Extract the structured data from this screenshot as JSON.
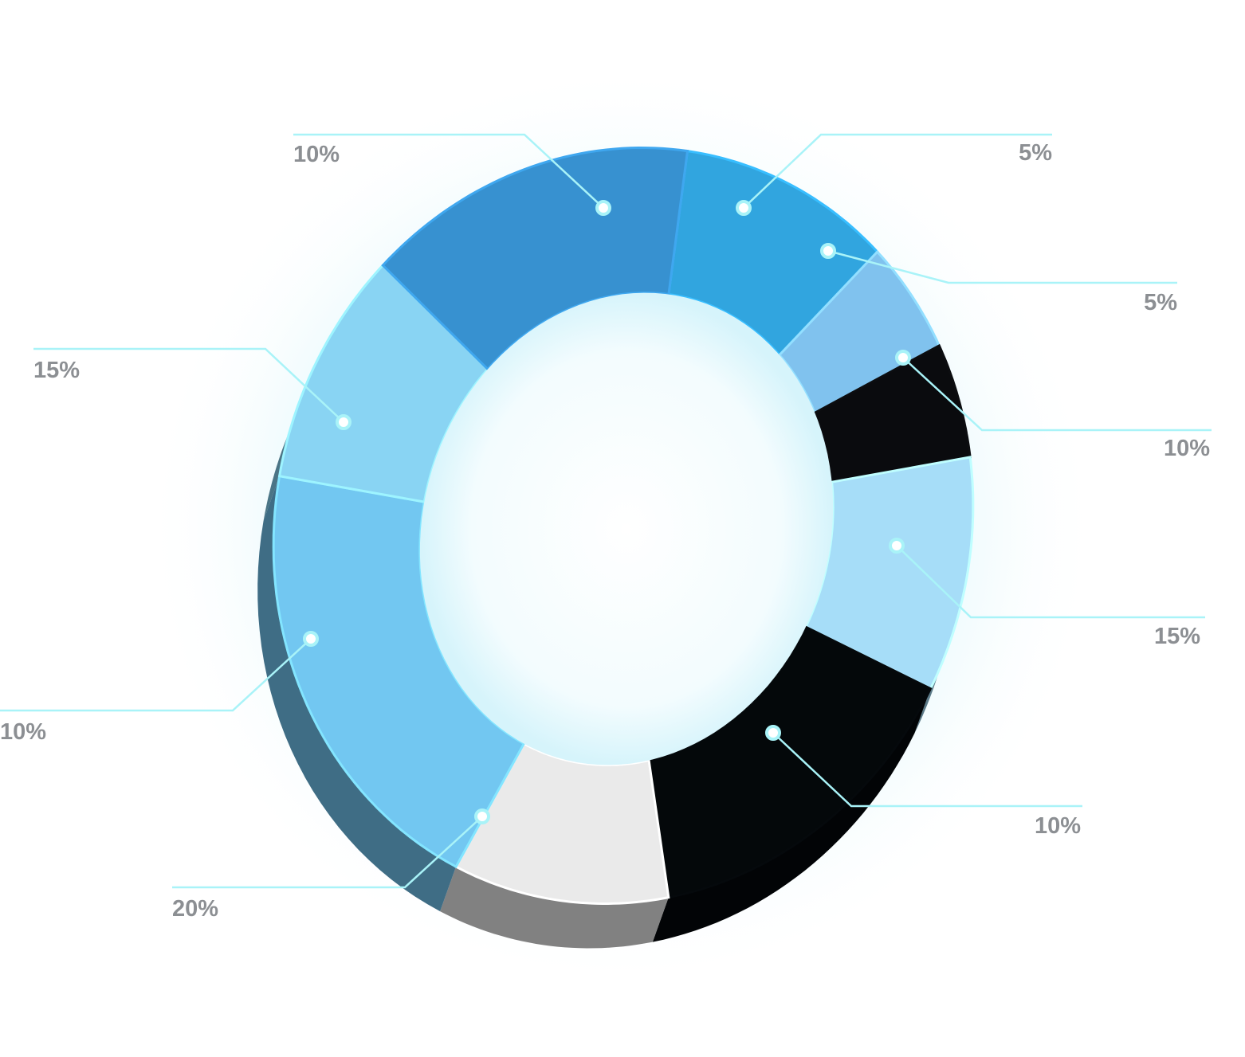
{
  "chart_data": {
    "type": "pie",
    "donut": true,
    "style": "3d-ring",
    "slices": [
      {
        "value": 10,
        "label": "10%",
        "color": "#31a5df"
      },
      {
        "value": 5,
        "label": "5%",
        "color": "#80c2ee"
      },
      {
        "value": 5,
        "label": "5%",
        "color": "#0a0b0e"
      },
      {
        "value": 10,
        "label": "10%",
        "color": "#a6ddf8"
      },
      {
        "value": 15,
        "label": "15%",
        "color": "#04080a"
      },
      {
        "value": 10,
        "label": "10%",
        "color": "#eaeaea"
      },
      {
        "value": 20,
        "label": "20%",
        "color": "#72c7f1"
      },
      {
        "value": 10,
        "label": "10%",
        "color": "#89d4f3"
      },
      {
        "value": 15,
        "label": "15%",
        "color": "#3791d0"
      }
    ],
    "leader_color": "#a9f3f8",
    "label_color": "#8c8f93"
  }
}
